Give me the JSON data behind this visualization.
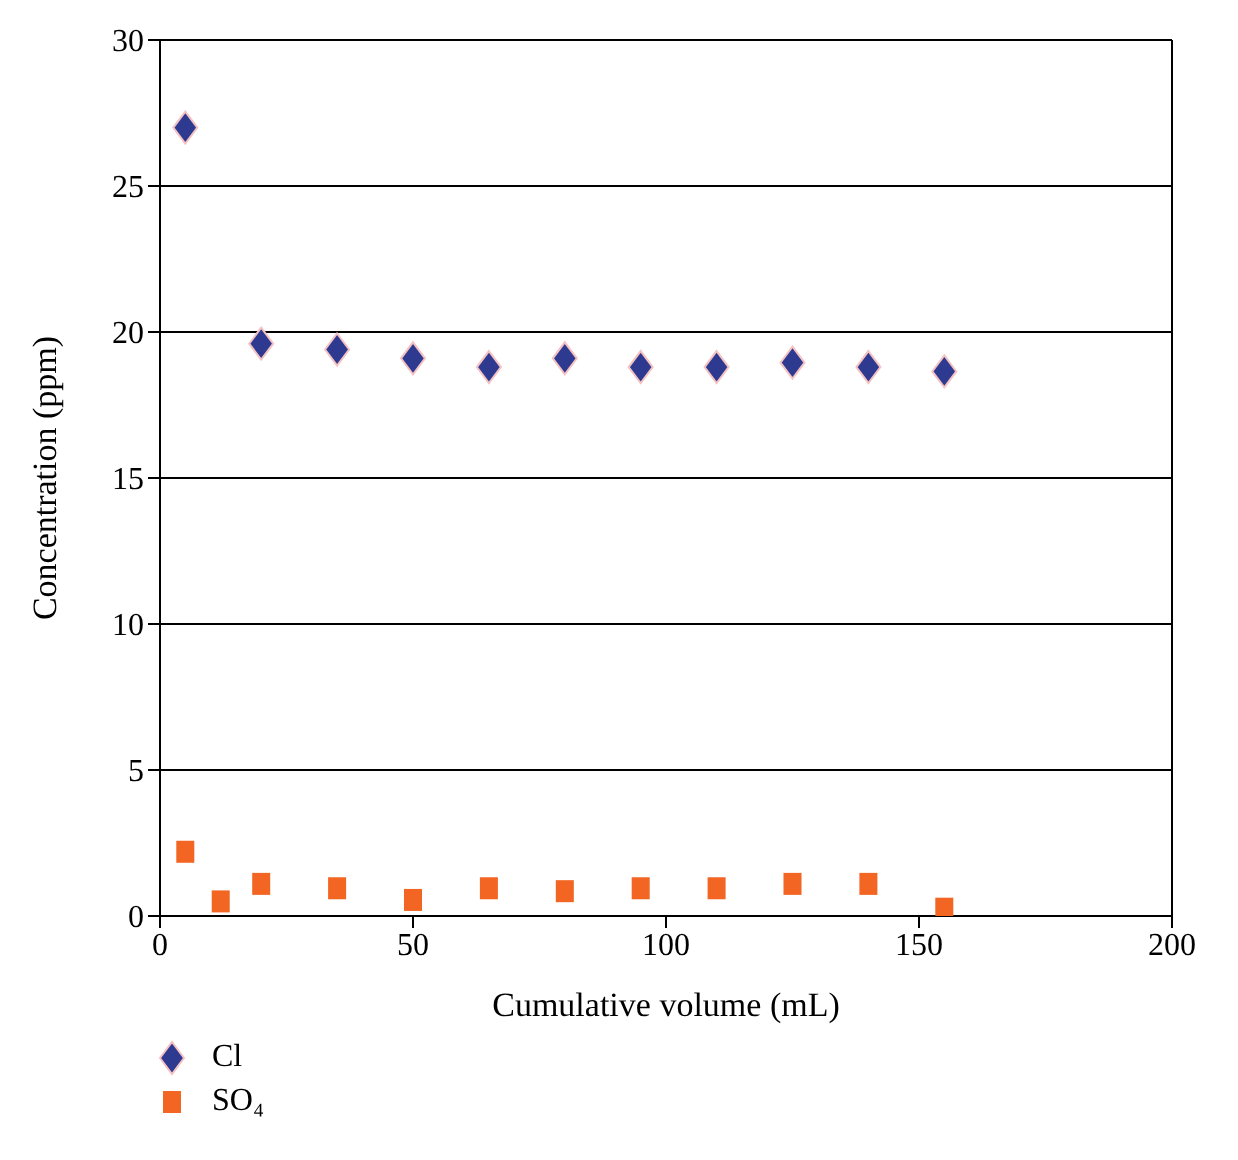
{
  "chart_data": {
    "type": "scatter",
    "xlabel": "Cumulative volume (mL)",
    "ylabel": "Concentration (ppm)",
    "xlim": [
      0,
      200
    ],
    "xticks": [
      0,
      50,
      100,
      150,
      200
    ],
    "ylim": [
      0,
      30
    ],
    "yticks": [
      0,
      5,
      10,
      15,
      20,
      25,
      30
    ],
    "grid": "y",
    "legend": "bottom left",
    "series": [
      {
        "name": "Cl",
        "color": "#2e3a8f",
        "marker": "diamond",
        "x": [
          5,
          20,
          35,
          50,
          65,
          80,
          95,
          110,
          125,
          140,
          155
        ],
        "values": [
          27.0,
          19.6,
          19.4,
          19.1,
          18.8,
          19.1,
          18.8,
          18.8,
          18.95,
          18.8,
          18.65
        ]
      },
      {
        "name": "SO₄",
        "color": "#f26522",
        "marker": "square",
        "x": [
          5,
          12,
          20,
          35,
          50,
          65,
          80,
          95,
          110,
          125,
          140,
          155
        ],
        "values": [
          2.2,
          0.5,
          1.1,
          0.95,
          0.55,
          0.95,
          0.85,
          0.95,
          0.95,
          1.1,
          1.1,
          0.25
        ]
      }
    ]
  }
}
